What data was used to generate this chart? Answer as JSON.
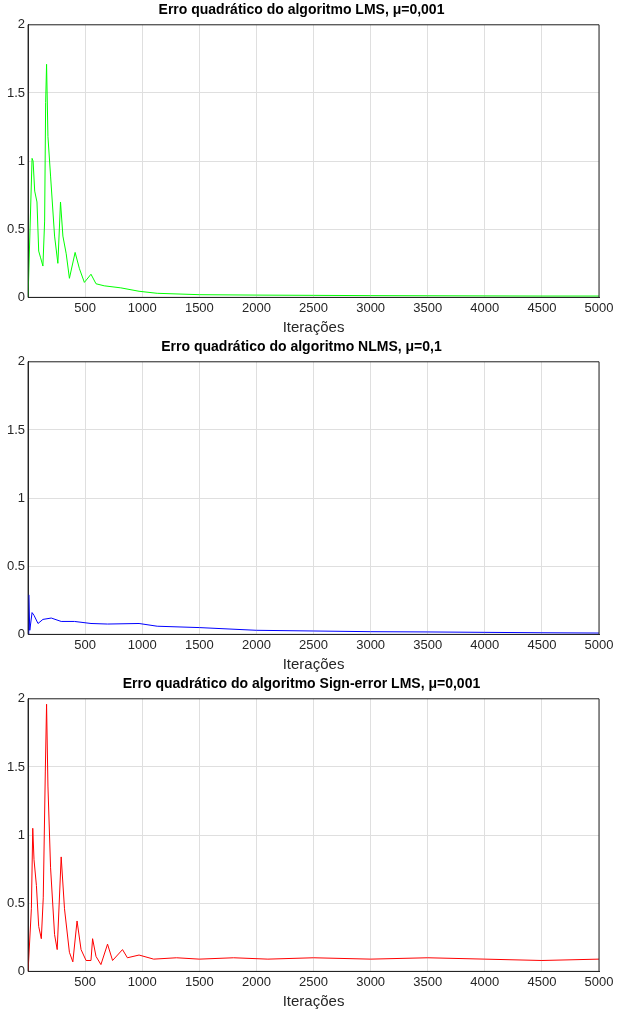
{
  "chart_data": [
    {
      "type": "line",
      "title": "Erro quadrático do algoritmo LMS, μ=0,001",
      "xlabel": "Iterações",
      "xlim": [
        0,
        5000
      ],
      "xticks": [
        500,
        1000,
        1500,
        2000,
        2500,
        3000,
        3500,
        4000,
        4500,
        5000
      ],
      "ylim": [
        0,
        2
      ],
      "yticks": [
        0,
        0.5,
        1,
        1.5,
        2
      ],
      "grid": true,
      "series": [
        {
          "color": "#00ff00",
          "x": [
            0,
            35,
            44,
            58,
            78,
            93,
            110,
            130,
            145,
            154,
            162,
            174,
            197,
            232,
            261,
            284,
            305,
            334,
            362,
            412,
            450,
            493,
            551,
            595,
            667,
            812,
            972,
            1131,
            1500,
            2000,
            2500,
            3000,
            3500,
            4000,
            4500,
            5000
          ],
          "values": [
            0,
            1.02,
            1.0,
            0.78,
            0.7,
            0.34,
            0.29,
            0.23,
            0.56,
            1.43,
            1.71,
            1.18,
            0.89,
            0.45,
            0.25,
            0.7,
            0.45,
            0.32,
            0.14,
            0.33,
            0.21,
            0.11,
            0.17,
            0.1,
            0.085,
            0.07,
            0.045,
            0.03,
            0.02,
            0.017,
            0.015,
            0.013,
            0.012,
            0.011,
            0.01,
            0.01
          ]
        }
      ]
    },
    {
      "type": "line",
      "title": "Erro quadrático do algoritmo NLMS, μ=0,1",
      "xlabel": "Iterações",
      "xlim": [
        0,
        5000
      ],
      "xticks": [
        500,
        1000,
        1500,
        2000,
        2500,
        3000,
        3500,
        4000,
        4500,
        5000
      ],
      "ylim": [
        0,
        2
      ],
      "yticks": [
        0,
        0.5,
        1,
        1.5,
        2
      ],
      "grid": true,
      "series": [
        {
          "color": "#0000ff",
          "x": [
            0,
            6,
            15,
            35,
            52,
            87,
            130,
            203,
            290,
            406,
            551,
            696,
            972,
            1131,
            1500,
            2000,
            2500,
            3000,
            3500,
            4000,
            4500,
            5000
          ],
          "values": [
            0,
            0.29,
            0.03,
            0.16,
            0.14,
            0.08,
            0.11,
            0.12,
            0.095,
            0.095,
            0.08,
            0.076,
            0.08,
            0.06,
            0.05,
            0.03,
            0.025,
            0.02,
            0.018,
            0.015,
            0.012,
            0.01
          ]
        }
      ]
    },
    {
      "type": "line",
      "title": "Erro quadrático do algoritmo Sign-error LMS, μ=0,001",
      "xlabel": "Iterações",
      "xlim": [
        0,
        5000
      ],
      "xticks": [
        500,
        1000,
        1500,
        2000,
        2500,
        3000,
        3500,
        4000,
        4500,
        5000
      ],
      "ylim": [
        0,
        2
      ],
      "yticks": [
        0,
        0.5,
        1,
        1.5,
        2
      ],
      "grid": true,
      "series": [
        {
          "color": "#ff0000",
          "x": [
            0,
            29,
            41,
            52,
            73,
            93,
            116,
            133,
            151,
            162,
            174,
            197,
            232,
            255,
            290,
            319,
            362,
            392,
            429,
            464,
            508,
            551,
            565,
            595,
            638,
            696,
            740,
            827,
            870,
            972,
            1100,
            1300,
            1500,
            1800,
            2100,
            2500,
            3000,
            3500,
            4000,
            4500,
            5000
          ],
          "values": [
            0,
            0.46,
            1.05,
            0.82,
            0.63,
            0.33,
            0.24,
            0.54,
            1.47,
            1.96,
            1.36,
            0.76,
            0.27,
            0.16,
            0.84,
            0.46,
            0.14,
            0.07,
            0.37,
            0.16,
            0.08,
            0.08,
            0.24,
            0.11,
            0.05,
            0.2,
            0.08,
            0.16,
            0.1,
            0.12,
            0.09,
            0.1,
            0.09,
            0.1,
            0.09,
            0.1,
            0.09,
            0.1,
            0.09,
            0.08,
            0.09
          ]
        }
      ]
    }
  ]
}
